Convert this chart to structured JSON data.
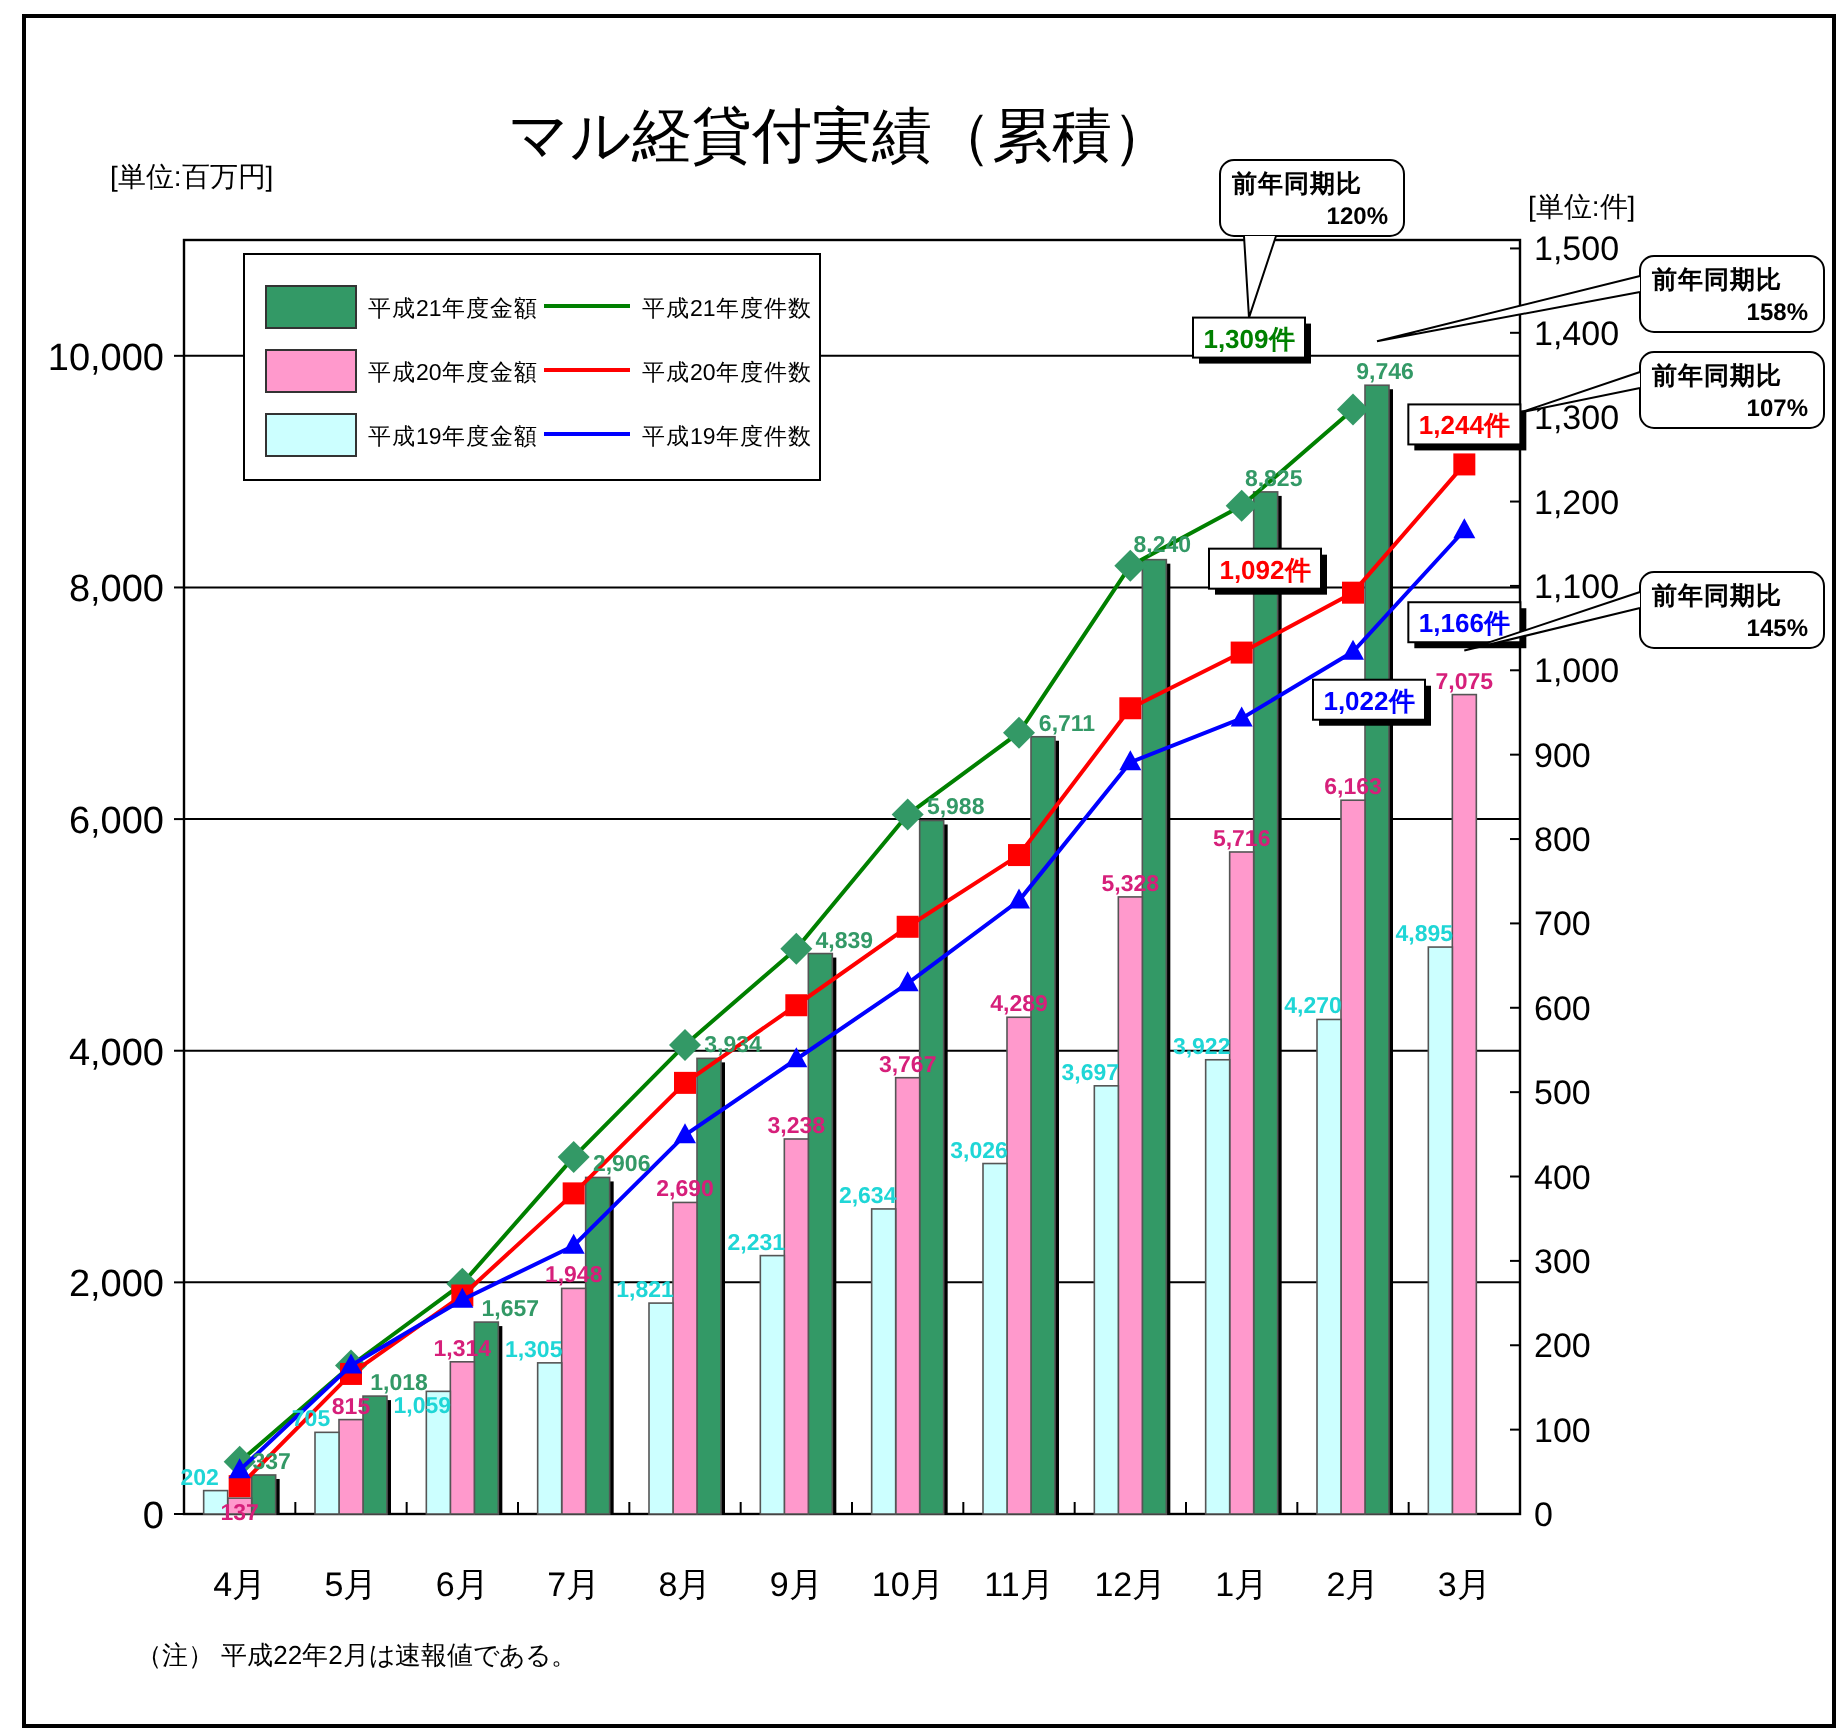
{
  "chart_data": {
    "type": "bar",
    "title": "マル経貸付実績（累積）",
    "ylabel": "[単位:百万円]",
    "y2label": "[単位:件]",
    "categories": [
      "4月",
      "5月",
      "6月",
      "7月",
      "8月",
      "9月",
      "10月",
      "11月",
      "12月",
      "1月",
      "2月",
      "3月"
    ],
    "series": [
      {
        "name": "平成21年度金額",
        "color": "#339966",
        "values": [
          337,
          1018,
          1657,
          2906,
          3934,
          4839,
          5988,
          6711,
          8240,
          8825,
          9746,
          null
        ],
        "value_labels": [
          "337",
          "1,018",
          "1,657",
          "2,906",
          "3,934",
          "4,839",
          "5,988",
          "6,711",
          "8,240",
          "8,825",
          "9,746",
          null
        ]
      },
      {
        "name": "平成20年度金額",
        "color": "#ff99cc",
        "values": [
          137,
          815,
          1314,
          1948,
          2690,
          3238,
          3767,
          4289,
          5328,
          5716,
          6163,
          7075
        ],
        "value_labels": [
          "137",
          "815",
          "1,314",
          "1,948",
          "2,690",
          "3,238",
          "3,767",
          "4,289",
          "5,328",
          "5,716",
          "6,163",
          "7,075"
        ]
      },
      {
        "name": "平成19年度金額",
        "color": "#ccffff",
        "values": [
          202,
          705,
          1059,
          1305,
          1821,
          2231,
          2634,
          3026,
          3697,
          3922,
          4270,
          4895
        ],
        "value_labels": [
          "202",
          "705",
          "1,059",
          "1,305",
          "1,821",
          "2,231",
          "2,634",
          "3,026",
          "3,697",
          "3,922",
          "4,270",
          "4,895"
        ]
      },
      {
        "name": "平成21年度件数",
        "type": "line",
        "axis": "y2",
        "marker": "diamond",
        "color": "#008000",
        "values": [
          62,
          176,
          273,
          423,
          556,
          670,
          829,
          926,
          1124,
          1195,
          1309,
          null
        ],
        "value_labels": [
          null,
          null,
          null,
          null,
          null,
          null,
          null,
          null,
          null,
          null,
          "1,309件",
          null
        ]
      },
      {
        "name": "平成20年度件数",
        "type": "line",
        "axis": "y2",
        "marker": "square",
        "color": "#ff0000",
        "values": [
          33,
          166,
          259,
          380,
          511,
          603,
          696,
          781,
          955,
          1021,
          1092,
          1244
        ],
        "value_labels": [
          null,
          null,
          null,
          null,
          null,
          null,
          null,
          null,
          null,
          null,
          "1,092件",
          "1,244件"
        ]
      },
      {
        "name": "平成19年度件数",
        "type": "line",
        "axis": "y2",
        "marker": "triangle",
        "color": "#0000ff",
        "values": [
          52,
          176,
          254,
          318,
          449,
          539,
          629,
          727,
          891,
          943,
          1022,
          1166
        ],
        "value_labels": [
          null,
          null,
          null,
          null,
          null,
          null,
          null,
          null,
          null,
          null,
          "1,022件",
          "1,166件"
        ]
      }
    ],
    "ylim": [
      0,
      11000
    ],
    "yticks": [
      0,
      {
        "value": 2000,
        "label": "2,000"
      },
      {
        "value": 4000,
        "label": "4,000"
      },
      {
        "value": 6000,
        "label": "6,000"
      },
      {
        "value": 8000,
        "label": "8,000"
      },
      {
        "value": 10000,
        "label": "10,000"
      }
    ],
    "y2lim": [
      0,
      1510
    ],
    "y2ticks": [
      0,
      100,
      200,
      300,
      400,
      500,
      600,
      700,
      800,
      900,
      {
        "value": 1000,
        "label": "1,000"
      },
      {
        "value": 1100,
        "label": "1,100"
      },
      {
        "value": 1200,
        "label": "1,200"
      },
      {
        "value": 1300,
        "label": "1,300"
      },
      {
        "value": 1400,
        "label": "1,400"
      },
      {
        "value": 1500,
        "label": "1,500"
      }
    ],
    "grid": "y",
    "legend": "top left",
    "annotations": [
      "前年同期比\n120%",
      "前年同期比\n158%",
      "前年同期比\n107%",
      "前年同期比\n145%",
      "（注） 平成22年2月は速報値である。"
    ]
  }
}
